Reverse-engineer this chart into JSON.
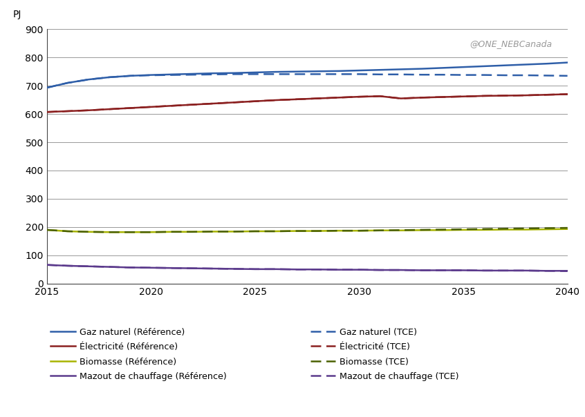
{
  "years": [
    2015,
    2016,
    2017,
    2018,
    2019,
    2020,
    2021,
    2022,
    2023,
    2024,
    2025,
    2026,
    2027,
    2028,
    2029,
    2030,
    2031,
    2032,
    2033,
    2034,
    2035,
    2036,
    2037,
    2038,
    2039,
    2040
  ],
  "gaz_ref": [
    693,
    710,
    722,
    730,
    735,
    738,
    740,
    742,
    744,
    745,
    747,
    749,
    750,
    751,
    752,
    754,
    756,
    758,
    760,
    763,
    766,
    769,
    772,
    775,
    778,
    782
  ],
  "gaz_tce": [
    693,
    710,
    722,
    730,
    735,
    737,
    738,
    739,
    740,
    741,
    741,
    741,
    741,
    741,
    741,
    741,
    740,
    740,
    739,
    739,
    738,
    738,
    737,
    737,
    736,
    735
  ],
  "elec_ref": [
    607,
    610,
    613,
    617,
    621,
    625,
    629,
    633,
    637,
    641,
    645,
    649,
    652,
    655,
    658,
    661,
    663,
    655,
    658,
    660,
    662,
    664,
    665,
    666,
    668,
    670
  ],
  "elec_tce": [
    607,
    610,
    613,
    617,
    621,
    625,
    629,
    633,
    637,
    641,
    645,
    649,
    652,
    655,
    658,
    661,
    663,
    655,
    658,
    660,
    662,
    664,
    665,
    666,
    668,
    670
  ],
  "bio_ref": [
    190,
    185,
    183,
    182,
    182,
    182,
    183,
    183,
    184,
    184,
    185,
    185,
    186,
    186,
    187,
    187,
    188,
    188,
    189,
    189,
    190,
    190,
    191,
    191,
    192,
    193
  ],
  "bio_tce": [
    190,
    185,
    183,
    182,
    182,
    182,
    183,
    183,
    184,
    184,
    185,
    185,
    186,
    186,
    187,
    187,
    188,
    189,
    190,
    191,
    192,
    193,
    194,
    195,
    196,
    197
  ],
  "mazout_ref": [
    66,
    63,
    61,
    59,
    57,
    56,
    55,
    54,
    53,
    52,
    51,
    51,
    50,
    50,
    49,
    49,
    48,
    48,
    47,
    47,
    47,
    46,
    46,
    46,
    45,
    45
  ],
  "mazout_tce": [
    66,
    63,
    61,
    59,
    57,
    56,
    55,
    54,
    53,
    52,
    51,
    51,
    50,
    50,
    49,
    49,
    48,
    48,
    47,
    47,
    47,
    46,
    46,
    46,
    45,
    44
  ],
  "color_gaz": "#2E5EA8",
  "color_elec": "#8B2020",
  "color_bio_ref": "#A8B400",
  "color_bio_tce": "#4A6000",
  "color_mazout": "#5B3A8C",
  "ylabel": "PJ",
  "ylim": [
    0,
    900
  ],
  "xlim": [
    2015,
    2040
  ],
  "yticks": [
    0,
    100,
    200,
    300,
    400,
    500,
    600,
    700,
    800,
    900
  ],
  "xticks": [
    2015,
    2020,
    2025,
    2030,
    2035,
    2040
  ],
  "watermark": "@ONE_NEBCanada",
  "legend_left": [
    {
      "label": "Gaz naturel (Référence)",
      "color": "#2E5EA8",
      "dashed": false
    },
    {
      "label": "Électricité (Référence)",
      "color": "#8B2020",
      "dashed": false
    },
    {
      "label": "Biomasse (Référence)",
      "color": "#A8B400",
      "dashed": false
    },
    {
      "label": "Mazout de chauffage (Référence)",
      "color": "#5B3A8C",
      "dashed": false
    }
  ],
  "legend_right": [
    {
      "label": "Gaz naturel (TCE)",
      "color": "#2E5EA8",
      "dashed": true
    },
    {
      "label": "Électricité (TCE)",
      "color": "#8B2020",
      "dashed": true
    },
    {
      "label": "Biomasse (TCE)",
      "color": "#4A6000",
      "dashed": true
    },
    {
      "label": "Mazout de chauffage (TCE)",
      "color": "#5B3A8C",
      "dashed": true
    }
  ],
  "background_color": "#FFFFFF",
  "grid_color": "#888888",
  "linewidth": 1.8
}
